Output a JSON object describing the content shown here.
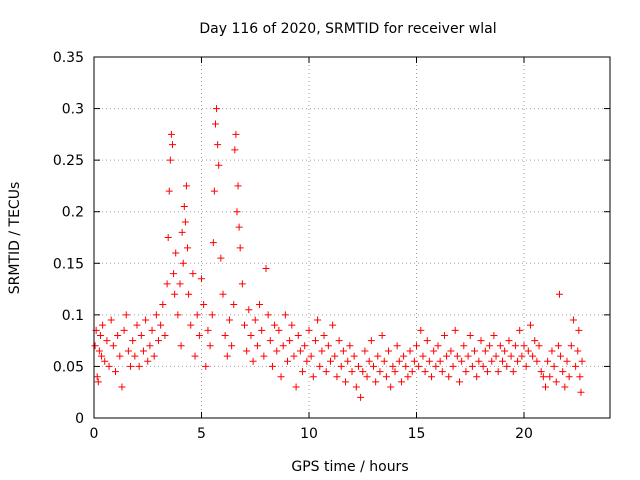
{
  "chart_data": {
    "type": "scatter",
    "title": "Day 116 of 2020, SRMTID for receiver wlal",
    "xlabel": "GPS time / hours",
    "ylabel": "SRMTID / TECUs",
    "xlim": [
      0,
      24
    ],
    "ylim": [
      0,
      0.35
    ],
    "xticks": [
      0,
      5,
      10,
      15,
      20
    ],
    "xtick_labels": [
      "0",
      "5",
      "10",
      "15",
      "20"
    ],
    "yticks": [
      0,
      0.05,
      0.1,
      0.15,
      0.2,
      0.25,
      0.3,
      0.35
    ],
    "ytick_labels": [
      "0",
      "0.05",
      "0.1",
      "0.15",
      "0.2",
      "0.25",
      "0.3",
      "0.35"
    ],
    "grid": true,
    "marker": "plus",
    "color": "#ff0000",
    "series": [
      {
        "name": "SRMTID",
        "points": [
          [
            0.05,
            0.07
          ],
          [
            0.1,
            0.085
          ],
          [
            0.15,
            0.04
          ],
          [
            0.2,
            0.035
          ],
          [
            0.25,
            0.065
          ],
          [
            0.3,
            0.08
          ],
          [
            0.35,
            0.06
          ],
          [
            0.4,
            0.09
          ],
          [
            0.5,
            0.055
          ],
          [
            0.6,
            0.075
          ],
          [
            0.7,
            0.05
          ],
          [
            0.8,
            0.095
          ],
          [
            0.9,
            0.07
          ],
          [
            1.0,
            0.045
          ],
          [
            1.1,
            0.08
          ],
          [
            1.2,
            0.06
          ],
          [
            1.3,
            0.03
          ],
          [
            1.4,
            0.085
          ],
          [
            1.5,
            0.1
          ],
          [
            1.6,
            0.065
          ],
          [
            1.7,
            0.05
          ],
          [
            1.8,
            0.075
          ],
          [
            1.9,
            0.06
          ],
          [
            2.0,
            0.09
          ],
          [
            2.1,
            0.05
          ],
          [
            2.2,
            0.08
          ],
          [
            2.3,
            0.065
          ],
          [
            2.4,
            0.095
          ],
          [
            2.5,
            0.055
          ],
          [
            2.6,
            0.07
          ],
          [
            2.7,
            0.085
          ],
          [
            2.8,
            0.06
          ],
          [
            2.9,
            0.1
          ],
          [
            3.0,
            0.075
          ],
          [
            3.1,
            0.09
          ],
          [
            3.2,
            0.11
          ],
          [
            3.3,
            0.08
          ],
          [
            3.4,
            0.13
          ],
          [
            3.45,
            0.175
          ],
          [
            3.5,
            0.22
          ],
          [
            3.55,
            0.25
          ],
          [
            3.6,
            0.275
          ],
          [
            3.65,
            0.265
          ],
          [
            3.7,
            0.14
          ],
          [
            3.75,
            0.12
          ],
          [
            3.8,
            0.16
          ],
          [
            3.9,
            0.1
          ],
          [
            4.0,
            0.13
          ],
          [
            4.05,
            0.07
          ],
          [
            4.1,
            0.18
          ],
          [
            4.15,
            0.15
          ],
          [
            4.2,
            0.205
          ],
          [
            4.25,
            0.19
          ],
          [
            4.3,
            0.225
          ],
          [
            4.35,
            0.165
          ],
          [
            4.4,
            0.12
          ],
          [
            4.5,
            0.09
          ],
          [
            4.6,
            0.14
          ],
          [
            4.7,
            0.06
          ],
          [
            4.8,
            0.1
          ],
          [
            4.9,
            0.08
          ],
          [
            5.0,
            0.135
          ],
          [
            5.1,
            0.11
          ],
          [
            5.2,
            0.05
          ],
          [
            5.3,
            0.085
          ],
          [
            5.4,
            0.07
          ],
          [
            5.5,
            0.1
          ],
          [
            5.55,
            0.17
          ],
          [
            5.6,
            0.22
          ],
          [
            5.65,
            0.285
          ],
          [
            5.7,
            0.3
          ],
          [
            5.75,
            0.265
          ],
          [
            5.8,
            0.245
          ],
          [
            5.9,
            0.155
          ],
          [
            6.0,
            0.12
          ],
          [
            6.1,
            0.08
          ],
          [
            6.2,
            0.06
          ],
          [
            6.3,
            0.095
          ],
          [
            6.4,
            0.07
          ],
          [
            6.5,
            0.11
          ],
          [
            6.55,
            0.26
          ],
          [
            6.6,
            0.275
          ],
          [
            6.65,
            0.2
          ],
          [
            6.7,
            0.225
          ],
          [
            6.75,
            0.185
          ],
          [
            6.8,
            0.165
          ],
          [
            6.9,
            0.13
          ],
          [
            7.0,
            0.09
          ],
          [
            7.1,
            0.065
          ],
          [
            7.2,
            0.105
          ],
          [
            7.3,
            0.08
          ],
          [
            7.4,
            0.055
          ],
          [
            7.5,
            0.095
          ],
          [
            7.6,
            0.07
          ],
          [
            7.7,
            0.11
          ],
          [
            7.8,
            0.085
          ],
          [
            7.9,
            0.06
          ],
          [
            8.0,
            0.145
          ],
          [
            8.1,
            0.1
          ],
          [
            8.2,
            0.075
          ],
          [
            8.3,
            0.05
          ],
          [
            8.4,
            0.09
          ],
          [
            8.5,
            0.065
          ],
          [
            8.6,
            0.085
          ],
          [
            8.7,
            0.04
          ],
          [
            8.8,
            0.07
          ],
          [
            8.9,
            0.1
          ],
          [
            9.0,
            0.055
          ],
          [
            9.1,
            0.075
          ],
          [
            9.2,
            0.09
          ],
          [
            9.3,
            0.06
          ],
          [
            9.4,
            0.03
          ],
          [
            9.5,
            0.08
          ],
          [
            9.6,
            0.065
          ],
          [
            9.7,
            0.045
          ],
          [
            9.8,
            0.07
          ],
          [
            9.9,
            0.055
          ],
          [
            10.0,
            0.085
          ],
          [
            10.1,
            0.06
          ],
          [
            10.2,
            0.04
          ],
          [
            10.3,
            0.075
          ],
          [
            10.4,
            0.095
          ],
          [
            10.5,
            0.05
          ],
          [
            10.6,
            0.065
          ],
          [
            10.7,
            0.08
          ],
          [
            10.8,
            0.045
          ],
          [
            10.9,
            0.07
          ],
          [
            11.0,
            0.055
          ],
          [
            11.1,
            0.09
          ],
          [
            11.2,
            0.06
          ],
          [
            11.3,
            0.04
          ],
          [
            11.4,
            0.075
          ],
          [
            11.5,
            0.05
          ],
          [
            11.6,
            0.065
          ],
          [
            11.7,
            0.035
          ],
          [
            11.8,
            0.055
          ],
          [
            11.9,
            0.07
          ],
          [
            12.0,
            0.045
          ],
          [
            12.1,
            0.06
          ],
          [
            12.2,
            0.03
          ],
          [
            12.3,
            0.05
          ],
          [
            12.4,
            0.02
          ],
          [
            12.5,
            0.045
          ],
          [
            12.6,
            0.065
          ],
          [
            12.7,
            0.04
          ],
          [
            12.8,
            0.055
          ],
          [
            12.9,
            0.075
          ],
          [
            13.0,
            0.05
          ],
          [
            13.1,
            0.035
          ],
          [
            13.2,
            0.06
          ],
          [
            13.3,
            0.045
          ],
          [
            13.4,
            0.08
          ],
          [
            13.5,
            0.055
          ],
          [
            13.6,
            0.04
          ],
          [
            13.7,
            0.065
          ],
          [
            13.8,
            0.03
          ],
          [
            13.9,
            0.05
          ],
          [
            14.0,
            0.045
          ],
          [
            14.1,
            0.07
          ],
          [
            14.2,
            0.055
          ],
          [
            14.3,
            0.035
          ],
          [
            14.4,
            0.06
          ],
          [
            14.5,
            0.05
          ],
          [
            14.6,
            0.04
          ],
          [
            14.7,
            0.065
          ],
          [
            14.8,
            0.045
          ],
          [
            14.9,
            0.055
          ],
          [
            15.0,
            0.07
          ],
          [
            15.1,
            0.05
          ],
          [
            15.2,
            0.085
          ],
          [
            15.3,
            0.06
          ],
          [
            15.4,
            0.045
          ],
          [
            15.5,
            0.075
          ],
          [
            15.6,
            0.055
          ],
          [
            15.7,
            0.04
          ],
          [
            15.8,
            0.065
          ],
          [
            15.9,
            0.05
          ],
          [
            16.0,
            0.07
          ],
          [
            16.1,
            0.055
          ],
          [
            16.2,
            0.045
          ],
          [
            16.3,
            0.08
          ],
          [
            16.4,
            0.06
          ],
          [
            16.5,
            0.04
          ],
          [
            16.6,
            0.065
          ],
          [
            16.7,
            0.05
          ],
          [
            16.8,
            0.085
          ],
          [
            16.9,
            0.06
          ],
          [
            17.0,
            0.035
          ],
          [
            17.1,
            0.055
          ],
          [
            17.2,
            0.07
          ],
          [
            17.3,
            0.045
          ],
          [
            17.4,
            0.06
          ],
          [
            17.5,
            0.08
          ],
          [
            17.6,
            0.05
          ],
          [
            17.7,
            0.065
          ],
          [
            17.8,
            0.04
          ],
          [
            17.9,
            0.055
          ],
          [
            18.0,
            0.075
          ],
          [
            18.1,
            0.05
          ],
          [
            18.2,
            0.065
          ],
          [
            18.3,
            0.045
          ],
          [
            18.4,
            0.07
          ],
          [
            18.5,
            0.055
          ],
          [
            18.6,
            0.08
          ],
          [
            18.7,
            0.06
          ],
          [
            18.8,
            0.045
          ],
          [
            18.9,
            0.07
          ],
          [
            19.0,
            0.055
          ],
          [
            19.1,
            0.065
          ],
          [
            19.2,
            0.05
          ],
          [
            19.3,
            0.075
          ],
          [
            19.4,
            0.06
          ],
          [
            19.5,
            0.045
          ],
          [
            19.6,
            0.07
          ],
          [
            19.7,
            0.055
          ],
          [
            19.8,
            0.085
          ],
          [
            19.9,
            0.06
          ],
          [
            20.0,
            0.07
          ],
          [
            20.1,
            0.05
          ],
          [
            20.2,
            0.065
          ],
          [
            20.3,
            0.09
          ],
          [
            20.4,
            0.06
          ],
          [
            20.5,
            0.075
          ],
          [
            20.6,
            0.055
          ],
          [
            20.7,
            0.07
          ],
          [
            20.8,
            0.045
          ],
          [
            20.9,
            0.04
          ],
          [
            21.0,
            0.03
          ],
          [
            21.1,
            0.055
          ],
          [
            21.2,
            0.04
          ],
          [
            21.3,
            0.065
          ],
          [
            21.4,
            0.05
          ],
          [
            21.5,
            0.035
          ],
          [
            21.6,
            0.07
          ],
          [
            21.65,
            0.12
          ],
          [
            21.7,
            0.06
          ],
          [
            21.8,
            0.045
          ],
          [
            21.9,
            0.03
          ],
          [
            22.0,
            0.055
          ],
          [
            22.1,
            0.04
          ],
          [
            22.2,
            0.07
          ],
          [
            22.3,
            0.095
          ],
          [
            22.4,
            0.05
          ],
          [
            22.5,
            0.065
          ],
          [
            22.55,
            0.085
          ],
          [
            22.6,
            0.04
          ],
          [
            22.65,
            0.025
          ],
          [
            22.7,
            0.055
          ]
        ]
      }
    ]
  }
}
